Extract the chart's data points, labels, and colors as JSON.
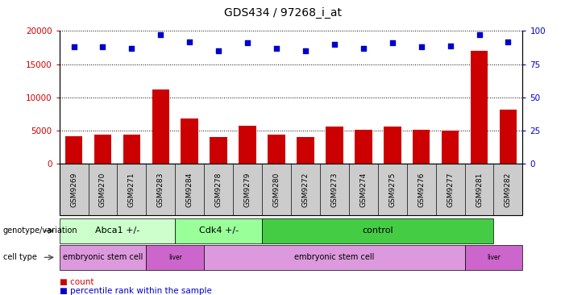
{
  "title": "GDS434 / 97268_i_at",
  "samples": [
    "GSM9269",
    "GSM9270",
    "GSM9271",
    "GSM9283",
    "GSM9284",
    "GSM9278",
    "GSM9279",
    "GSM9280",
    "GSM9272",
    "GSM9273",
    "GSM9274",
    "GSM9275",
    "GSM9276",
    "GSM9277",
    "GSM9281",
    "GSM9282"
  ],
  "counts": [
    4100,
    4400,
    4400,
    11200,
    6800,
    4000,
    5700,
    4400,
    4000,
    5600,
    5100,
    5600,
    5100,
    5000,
    17000,
    8200
  ],
  "percentile_values": [
    88,
    88,
    87,
    97,
    92,
    85,
    91,
    87,
    85,
    90,
    87,
    91,
    88,
    89,
    97,
    92
  ],
  "ylim_left": [
    0,
    20000
  ],
  "ylim_right": [
    0,
    100
  ],
  "yticks_left": [
    0,
    5000,
    10000,
    15000,
    20000
  ],
  "yticks_right": [
    0,
    25,
    50,
    75,
    100
  ],
  "bar_color": "#cc0000",
  "dot_color": "#0000cc",
  "genotype_groups": [
    {
      "label": "Abca1 +/-",
      "start": 0,
      "end": 4,
      "color": "#ccffcc"
    },
    {
      "label": "Cdk4 +/-",
      "start": 4,
      "end": 7,
      "color": "#99ff99"
    },
    {
      "label": "control",
      "start": 7,
      "end": 15,
      "color": "#44cc44"
    }
  ],
  "celltype_groups": [
    {
      "label": "embryonic stem cell",
      "start": 0,
      "end": 3,
      "color": "#dd99dd"
    },
    {
      "label": "liver",
      "start": 3,
      "end": 5,
      "color": "#cc66cc"
    },
    {
      "label": "embryonic stem cell",
      "start": 5,
      "end": 14,
      "color": "#dd99dd"
    },
    {
      "label": "liver",
      "start": 14,
      "end": 16,
      "color": "#cc66cc"
    }
  ]
}
